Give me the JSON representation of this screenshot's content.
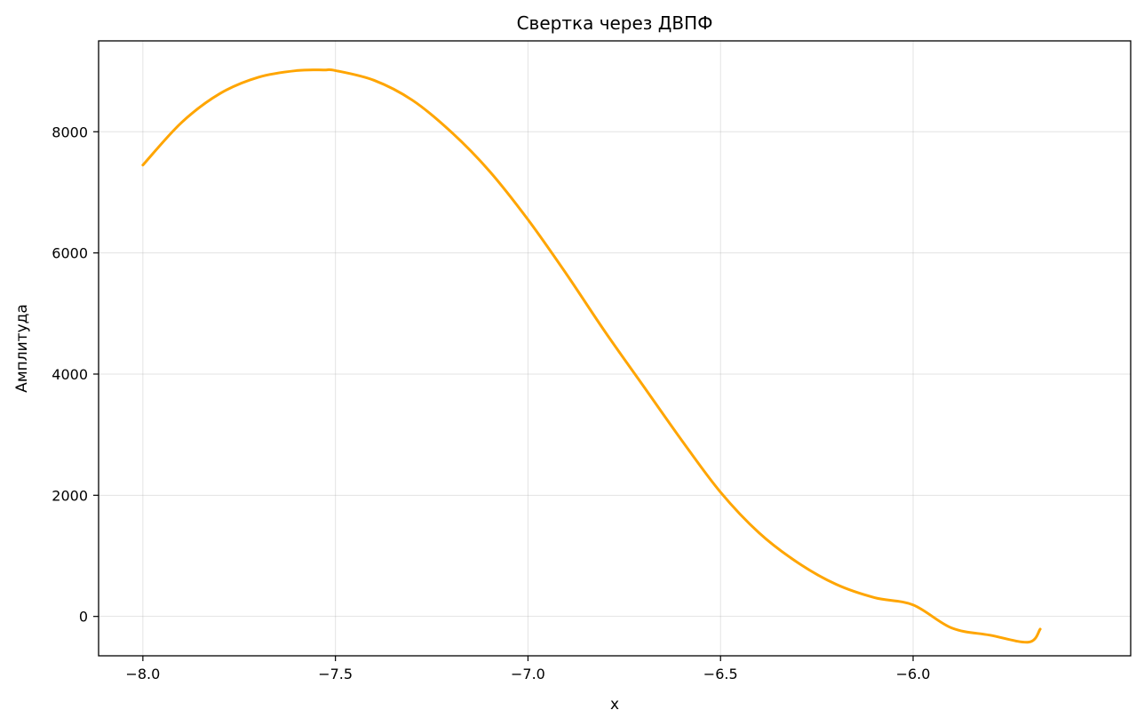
{
  "chart_data": {
    "type": "line",
    "title": "Свертка через ДВПФ",
    "xlabel": "x",
    "ylabel": "Амплитуда",
    "xlim": [
      -8.115,
      -5.435
    ],
    "ylim": [
      -650,
      9500
    ],
    "x_ticks": [
      -8.0,
      -7.5,
      -7.0,
      -6.5,
      -6.0
    ],
    "x_tick_labels": [
      "−8.0",
      "−7.5",
      "−7.0",
      "−6.5",
      "−6.0"
    ],
    "y_ticks": [
      0,
      2000,
      4000,
      6000,
      8000
    ],
    "y_tick_labels": [
      "0",
      "2000",
      "4000",
      "6000",
      "8000"
    ],
    "grid": true,
    "series": [
      {
        "color": "#FFA500",
        "x": [
          -8.0,
          -7.9,
          -7.8,
          -7.7,
          -7.6,
          -7.53,
          -7.5,
          -7.4,
          -7.3,
          -7.2,
          -7.1,
          -7.0,
          -6.9,
          -6.8,
          -6.7,
          -6.6,
          -6.5,
          -6.4,
          -6.3,
          -6.2,
          -6.1,
          -6.0,
          -5.9,
          -5.8,
          -5.7,
          -5.67
        ],
        "y": [
          7450,
          8150,
          8630,
          8900,
          9010,
          9020,
          9010,
          8850,
          8520,
          8000,
          7350,
          6550,
          5650,
          4700,
          3800,
          2900,
          2050,
          1380,
          890,
          530,
          310,
          190,
          -190,
          -310,
          -425,
          -210
        ]
      }
    ]
  }
}
